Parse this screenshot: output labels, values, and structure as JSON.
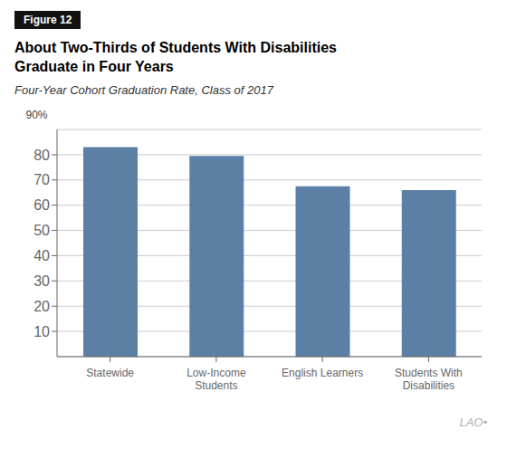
{
  "chart_data": {
    "type": "bar",
    "figure_label": "Figure 12",
    "title": "About Two-Thirds of Students With Disabilities\nGraduate in Four Years",
    "subtitle": "Four-Year Cohort Graduation Rate, Class of 2017",
    "categories": [
      "Statewide",
      "Low-Income\nStudents",
      "English Learners",
      "Students With\nDisabilities"
    ],
    "values": [
      83,
      79.5,
      67.5,
      66
    ],
    "color": "#5c7fa5",
    "ylim": [
      0,
      90
    ],
    "yticks": [
      10,
      20,
      30,
      40,
      50,
      60,
      70,
      80
    ],
    "grid": true,
    "annotations": [
      "90%",
      "LAO•"
    ]
  }
}
